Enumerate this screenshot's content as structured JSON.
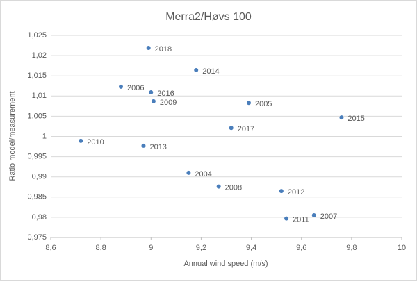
{
  "chart_data": {
    "type": "scatter",
    "title": "Merra2/Høvs 100",
    "xlabel": "Annual wind speed (m/s)",
    "ylabel": "Ratio model/measurement",
    "color": "#4a7ebb",
    "grid": true,
    "point_labels": [
      "2018",
      "2014",
      "2006",
      "2016",
      "2009",
      "2005",
      "2015",
      "2017",
      "2010",
      "2013",
      "2004",
      "2008",
      "2012",
      "2007",
      "2011"
    ],
    "x": [
      8.99,
      9.18,
      8.88,
      9.0,
      9.01,
      9.39,
      9.76,
      9.32,
      8.72,
      8.97,
      9.15,
      9.27,
      9.52,
      9.65,
      9.54
    ],
    "values": [
      1.0219,
      1.0164,
      1.0123,
      1.0109,
      1.0087,
      1.0083,
      1.0047,
      1.0021,
      0.9989,
      0.9977,
      0.991,
      0.9876,
      0.9865,
      0.9805,
      0.9797
    ],
    "xlim": [
      8.6,
      10
    ],
    "xticks": [
      {
        "value": 8.6,
        "label": "8,6"
      },
      {
        "value": 8.8,
        "label": "8,8"
      },
      9,
      {
        "value": 9.2,
        "label": "9,2"
      },
      {
        "value": 9.4,
        "label": "9,4"
      },
      {
        "value": 9.6,
        "label": "9,6"
      },
      {
        "value": 9.8,
        "label": "9,8"
      },
      10
    ],
    "ylim": [
      0.975,
      1.025
    ],
    "yticks": [
      {
        "value": 0.975,
        "label": "0,975"
      },
      {
        "value": 0.98,
        "label": "0,98"
      },
      {
        "value": 0.985,
        "label": "0,985"
      },
      {
        "value": 0.99,
        "label": "0,99"
      },
      {
        "value": 0.995,
        "label": "0,995"
      },
      1,
      {
        "value": 1.005,
        "label": "1,005"
      },
      {
        "value": 1.01,
        "label": "1,01"
      },
      {
        "value": 1.015,
        "label": "1,015"
      },
      {
        "value": 1.02,
        "label": "1,02"
      },
      {
        "value": 1.025,
        "label": "1,025"
      }
    ]
  }
}
